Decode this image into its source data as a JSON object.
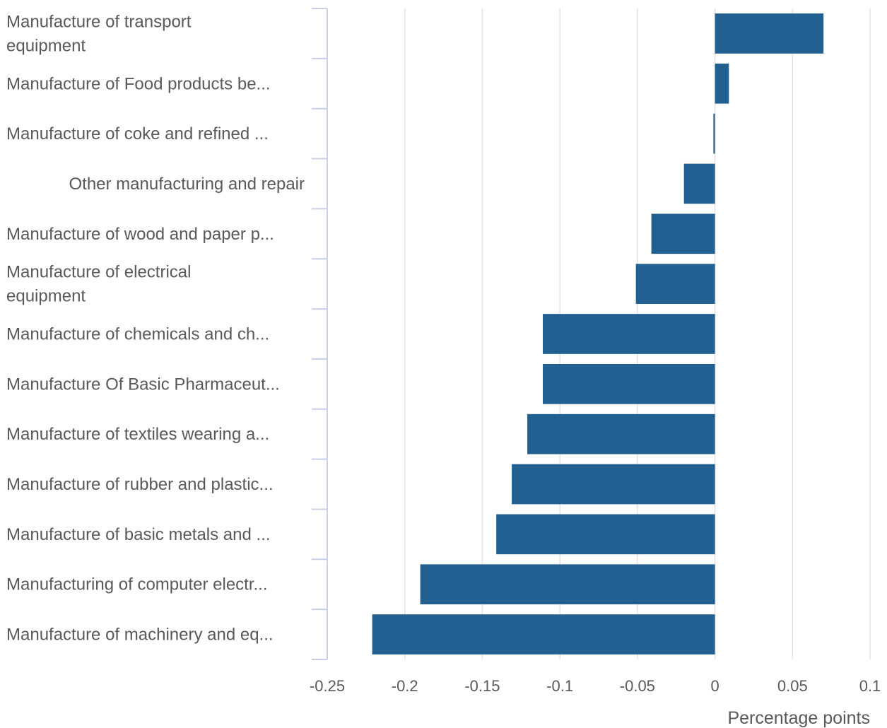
{
  "chart_data": {
    "type": "bar",
    "orientation": "horizontal",
    "categories": [
      [
        "Manufacture of transport",
        "equipment"
      ],
      [
        "Manufacture of Food products be..."
      ],
      [
        "Manufacture of coke and refined ..."
      ],
      [
        "Other manufacturing and repair"
      ],
      [
        "Manufacture of wood and paper p..."
      ],
      [
        "Manufacture of electrical",
        "equipment"
      ],
      [
        "Manufacture of chemicals and ch..."
      ],
      [
        "Manufacture Of Basic Pharmaceut..."
      ],
      [
        "Manufacture of textiles wearing a..."
      ],
      [
        "Manufacture of rubber and plastic..."
      ],
      [
        "Manufacture of basic metals and ..."
      ],
      [
        "Manufacturing of computer electr..."
      ],
      [
        "Manufacture of machinery and eq..."
      ]
    ],
    "values": [
      0.07,
      0.009,
      -0.001,
      -0.02,
      -0.041,
      -0.051,
      -0.111,
      -0.111,
      -0.121,
      -0.131,
      -0.141,
      -0.19,
      -0.221
    ],
    "xlim": [
      -0.25,
      0.1
    ],
    "xticks": [
      "-0.25",
      "-0.2",
      "-0.15",
      "-0.1",
      "-0.05",
      "0",
      "0.05",
      "0.1"
    ],
    "xlabel": "Percentage points",
    "grid": "vertical",
    "colors": {
      "bar": "#236092",
      "grid": "#e3e3e3",
      "axis": "#c9d0e6",
      "text": "#595959"
    }
  }
}
